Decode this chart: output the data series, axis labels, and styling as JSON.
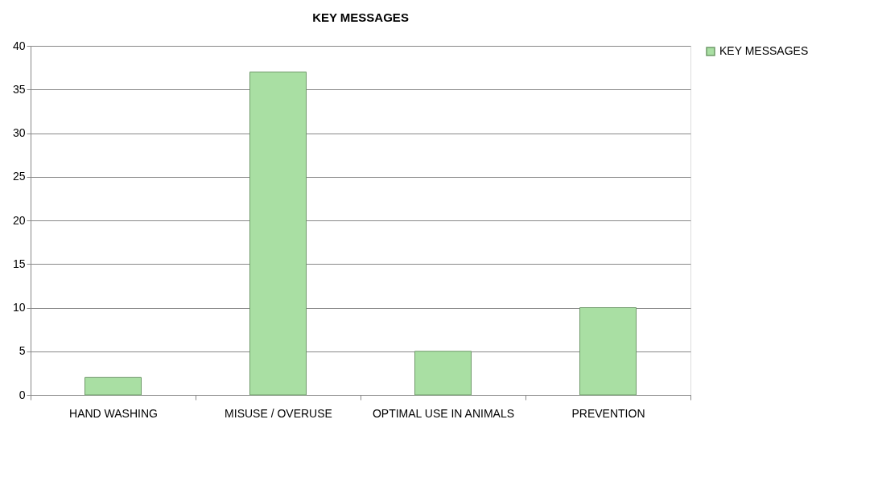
{
  "chart_data": {
    "type": "bar",
    "title": "KEY MESSAGES",
    "categories": [
      "HAND WASHING",
      "MISUSE / OVERUSE",
      "OPTIMAL USE IN ANIMALS",
      "PREVENTION"
    ],
    "series": [
      {
        "name": "KEY MESSAGES",
        "color": "#a9dfa3",
        "values": [
          2,
          37,
          5,
          10
        ]
      }
    ],
    "ylim": [
      0,
      40
    ],
    "yticks": [
      0,
      5,
      10,
      15,
      20,
      25,
      30,
      35,
      40
    ],
    "grid": "y",
    "legend": "right"
  }
}
